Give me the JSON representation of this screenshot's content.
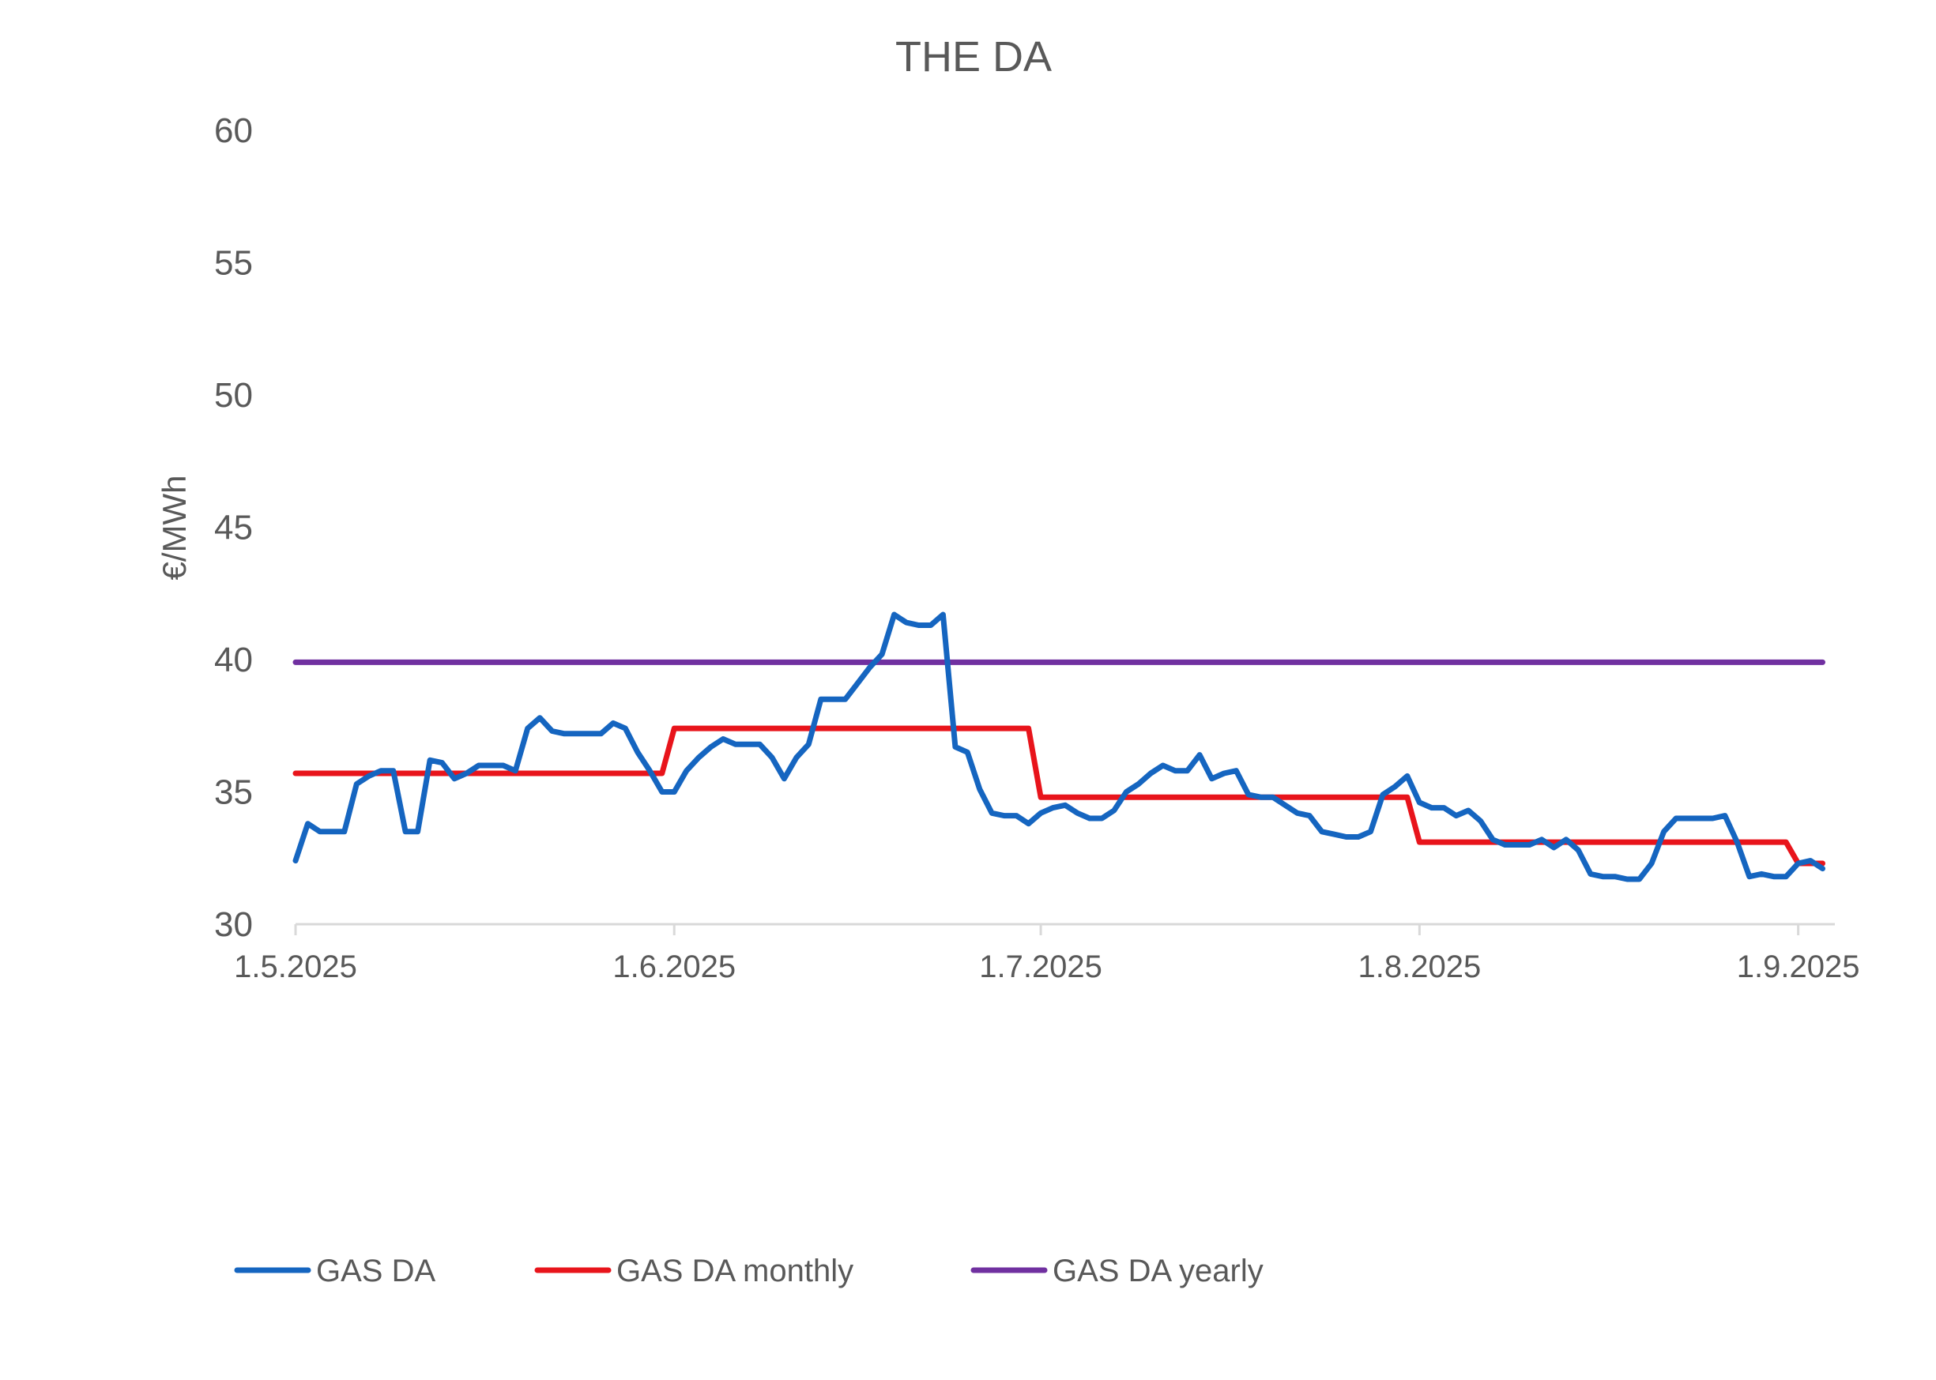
{
  "chart_data": {
    "type": "line",
    "title": "THE DA",
    "xlabel": "",
    "ylabel": "€/MWh",
    "ylim": [
      30,
      60
    ],
    "yticks": [
      30,
      35,
      40,
      45,
      50,
      55,
      60
    ],
    "xlim": [
      "2025-05-01",
      "2025-09-04"
    ],
    "xticks": [
      {
        "date": "2025-05-01",
        "label": "1.5.2025"
      },
      {
        "date": "2025-06-01",
        "label": "1.6.2025"
      },
      {
        "date": "2025-07-01",
        "label": "1.7.2025"
      },
      {
        "date": "2025-08-01",
        "label": "1.8.2025"
      },
      {
        "date": "2025-09-01",
        "label": "1.9.2025"
      }
    ],
    "grid": false,
    "legend_position": "bottom-left",
    "series": [
      {
        "name": "GAS DA",
        "color": "#1565C0",
        "points": [
          [
            "2025-05-01",
            32.4
          ],
          [
            "2025-05-02",
            33.8
          ],
          [
            "2025-05-03",
            33.5
          ],
          [
            "2025-05-04",
            33.5
          ],
          [
            "2025-05-05",
            33.5
          ],
          [
            "2025-05-06",
            35.3
          ],
          [
            "2025-05-07",
            35.6
          ],
          [
            "2025-05-08",
            35.8
          ],
          [
            "2025-05-09",
            35.8
          ],
          [
            "2025-05-10",
            33.5
          ],
          [
            "2025-05-11",
            33.5
          ],
          [
            "2025-05-12",
            36.2
          ],
          [
            "2025-05-13",
            36.1
          ],
          [
            "2025-05-14",
            35.5
          ],
          [
            "2025-05-15",
            35.7
          ],
          [
            "2025-05-16",
            36.0
          ],
          [
            "2025-05-17",
            36.0
          ],
          [
            "2025-05-18",
            36.0
          ],
          [
            "2025-05-19",
            35.8
          ],
          [
            "2025-05-20",
            37.4
          ],
          [
            "2025-05-21",
            37.8
          ],
          [
            "2025-05-22",
            37.3
          ],
          [
            "2025-05-23",
            37.2
          ],
          [
            "2025-05-24",
            37.2
          ],
          [
            "2025-05-25",
            37.2
          ],
          [
            "2025-05-26",
            37.2
          ],
          [
            "2025-05-27",
            37.6
          ],
          [
            "2025-05-28",
            37.4
          ],
          [
            "2025-05-29",
            36.5
          ],
          [
            "2025-05-30",
            35.8
          ],
          [
            "2025-05-31",
            35.0
          ],
          [
            "2025-06-01",
            35.0
          ],
          [
            "2025-06-02",
            35.8
          ],
          [
            "2025-06-03",
            36.3
          ],
          [
            "2025-06-04",
            36.7
          ],
          [
            "2025-06-05",
            37.0
          ],
          [
            "2025-06-06",
            36.8
          ],
          [
            "2025-06-07",
            36.8
          ],
          [
            "2025-06-08",
            36.8
          ],
          [
            "2025-06-09",
            36.3
          ],
          [
            "2025-06-10",
            35.5
          ],
          [
            "2025-06-11",
            36.3
          ],
          [
            "2025-06-12",
            36.8
          ],
          [
            "2025-06-13",
            38.5
          ],
          [
            "2025-06-14",
            38.5
          ],
          [
            "2025-06-15",
            38.5
          ],
          [
            "2025-06-16",
            39.1
          ],
          [
            "2025-06-17",
            39.7
          ],
          [
            "2025-06-18",
            40.2
          ],
          [
            "2025-06-19",
            41.7
          ],
          [
            "2025-06-20",
            41.4
          ],
          [
            "2025-06-21",
            41.3
          ],
          [
            "2025-06-22",
            41.3
          ],
          [
            "2025-06-23",
            41.7
          ],
          [
            "2025-06-24",
            36.7
          ],
          [
            "2025-06-25",
            36.5
          ],
          [
            "2025-06-26",
            35.1
          ],
          [
            "2025-06-27",
            34.2
          ],
          [
            "2025-06-28",
            34.1
          ],
          [
            "2025-06-29",
            34.1
          ],
          [
            "2025-06-30",
            33.8
          ],
          [
            "2025-07-01",
            34.2
          ],
          [
            "2025-07-02",
            34.4
          ],
          [
            "2025-07-03",
            34.5
          ],
          [
            "2025-07-04",
            34.2
          ],
          [
            "2025-07-05",
            34.0
          ],
          [
            "2025-07-06",
            34.0
          ],
          [
            "2025-07-07",
            34.3
          ],
          [
            "2025-07-08",
            35.0
          ],
          [
            "2025-07-09",
            35.3
          ],
          [
            "2025-07-10",
            35.7
          ],
          [
            "2025-07-11",
            36.0
          ],
          [
            "2025-07-12",
            35.8
          ],
          [
            "2025-07-13",
            35.8
          ],
          [
            "2025-07-14",
            36.4
          ],
          [
            "2025-07-15",
            35.5
          ],
          [
            "2025-07-16",
            35.7
          ],
          [
            "2025-07-17",
            35.8
          ],
          [
            "2025-07-18",
            34.9
          ],
          [
            "2025-07-19",
            34.8
          ],
          [
            "2025-07-20",
            34.8
          ],
          [
            "2025-07-21",
            34.5
          ],
          [
            "2025-07-22",
            34.2
          ],
          [
            "2025-07-23",
            34.1
          ],
          [
            "2025-07-24",
            33.5
          ],
          [
            "2025-07-25",
            33.4
          ],
          [
            "2025-07-26",
            33.3
          ],
          [
            "2025-07-27",
            33.3
          ],
          [
            "2025-07-28",
            33.5
          ],
          [
            "2025-07-29",
            34.9
          ],
          [
            "2025-07-30",
            35.2
          ],
          [
            "2025-07-31",
            35.6
          ],
          [
            "2025-08-01",
            34.6
          ],
          [
            "2025-08-02",
            34.4
          ],
          [
            "2025-08-03",
            34.4
          ],
          [
            "2025-08-04",
            34.1
          ],
          [
            "2025-08-05",
            34.3
          ],
          [
            "2025-08-06",
            33.9
          ],
          [
            "2025-08-07",
            33.2
          ],
          [
            "2025-08-08",
            33.0
          ],
          [
            "2025-08-09",
            33.0
          ],
          [
            "2025-08-10",
            33.0
          ],
          [
            "2025-08-11",
            33.2
          ],
          [
            "2025-08-12",
            32.9
          ],
          [
            "2025-08-13",
            33.2
          ],
          [
            "2025-08-14",
            32.8
          ],
          [
            "2025-08-15",
            31.9
          ],
          [
            "2025-08-16",
            31.8
          ],
          [
            "2025-08-17",
            31.8
          ],
          [
            "2025-08-18",
            31.7
          ],
          [
            "2025-08-19",
            31.7
          ],
          [
            "2025-08-20",
            32.3
          ],
          [
            "2025-08-21",
            33.5
          ],
          [
            "2025-08-22",
            34.0
          ],
          [
            "2025-08-23",
            34.0
          ],
          [
            "2025-08-24",
            34.0
          ],
          [
            "2025-08-25",
            34.0
          ],
          [
            "2025-08-26",
            34.1
          ],
          [
            "2025-08-27",
            33.1
          ],
          [
            "2025-08-28",
            31.8
          ],
          [
            "2025-08-29",
            31.9
          ],
          [
            "2025-08-30",
            31.8
          ],
          [
            "2025-08-31",
            31.8
          ],
          [
            "2025-09-01",
            32.3
          ],
          [
            "2025-09-02",
            32.4
          ],
          [
            "2025-09-03",
            32.1
          ]
        ]
      },
      {
        "name": "GAS DA monthly",
        "color": "#E8141B",
        "points": [
          [
            "2025-05-01",
            35.7
          ],
          [
            "2025-05-31",
            35.7
          ],
          [
            "2025-06-01",
            37.4
          ],
          [
            "2025-06-30",
            37.4
          ],
          [
            "2025-07-01",
            34.8
          ],
          [
            "2025-07-31",
            34.8
          ],
          [
            "2025-08-01",
            33.1
          ],
          [
            "2025-08-31",
            33.1
          ],
          [
            "2025-09-01",
            32.3
          ],
          [
            "2025-09-03",
            32.3
          ]
        ]
      },
      {
        "name": "GAS DA yearly",
        "color": "#7030A0",
        "points": [
          [
            "2025-05-01",
            39.9
          ],
          [
            "2025-09-03",
            39.9
          ]
        ]
      }
    ]
  }
}
